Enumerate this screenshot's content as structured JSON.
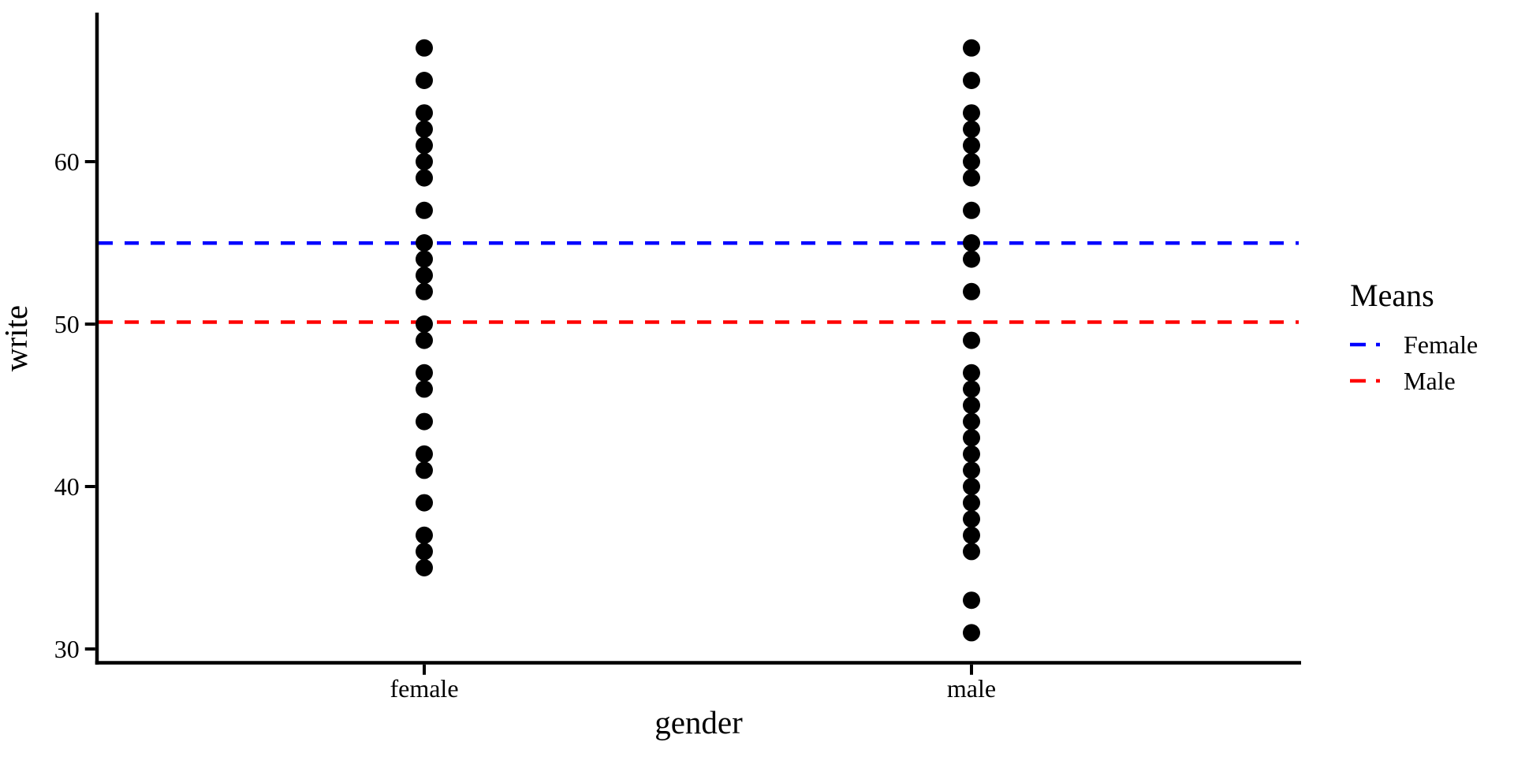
{
  "chart_data": {
    "type": "scatter",
    "title": "",
    "xlabel": "gender",
    "ylabel": "write",
    "categories": [
      "female",
      "male"
    ],
    "yticks": [
      30,
      40,
      50,
      60
    ],
    "ylim": [
      29,
      69
    ],
    "grid": false,
    "point_color": "#000000",
    "background_color": "#ffffff",
    "axis_color": "#000000",
    "series": [
      {
        "name": "female",
        "values": [
          35,
          36,
          37,
          39,
          41,
          42,
          44,
          46,
          47,
          49,
          50,
          52,
          53,
          54,
          55,
          57,
          59,
          60,
          61,
          62,
          63,
          65,
          67
        ]
      },
      {
        "name": "male",
        "values": [
          31,
          33,
          36,
          37,
          38,
          39,
          40,
          41,
          42,
          43,
          44,
          45,
          46,
          47,
          49,
          52,
          54,
          55,
          57,
          59,
          60,
          61,
          62,
          63,
          65,
          67
        ]
      }
    ],
    "mean_lines": [
      {
        "name": "Female",
        "value": 54.99,
        "color": "#0000ff",
        "style": "dashed"
      },
      {
        "name": "Male",
        "value": 50.12,
        "color": "#ff0000",
        "style": "dashed"
      }
    ],
    "legend": {
      "title": "Means",
      "position": "right",
      "entries": [
        {
          "label": "Female",
          "color": "#0000ff"
        },
        {
          "label": "Male",
          "color": "#ff0000"
        }
      ]
    }
  }
}
